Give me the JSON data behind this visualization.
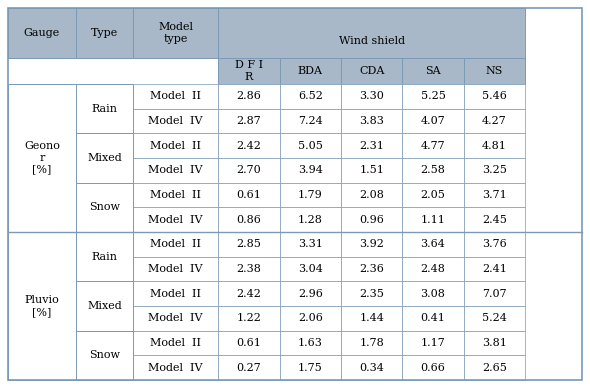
{
  "header_bg": "#a8b8c8",
  "data_bg": "#ffffff",
  "border_color": "#7a9ab5",
  "rows": [
    [
      "Geono\nr\n[%]",
      "Rain",
      "Model  II",
      "2.86",
      "6.52",
      "3.30",
      "5.25",
      "5.46"
    ],
    [
      "",
      "",
      "Model  IV",
      "2.87",
      "7.24",
      "3.83",
      "4.07",
      "4.27"
    ],
    [
      "",
      "Mixed",
      "Model  II",
      "2.42",
      "5.05",
      "2.31",
      "4.77",
      "4.81"
    ],
    [
      "",
      "",
      "Model  IV",
      "2.70",
      "3.94",
      "1.51",
      "2.58",
      "3.25"
    ],
    [
      "",
      "Snow",
      "Model  II",
      "0.61",
      "1.79",
      "2.08",
      "2.05",
      "3.71"
    ],
    [
      "",
      "",
      "Model  IV",
      "0.86",
      "1.28",
      "0.96",
      "1.11",
      "2.45"
    ],
    [
      "Pluvio\n[%]",
      "Rain",
      "Model  II",
      "2.85",
      "3.31",
      "3.92",
      "3.64",
      "3.76"
    ],
    [
      "",
      "",
      "Model  IV",
      "2.38",
      "3.04",
      "2.36",
      "2.48",
      "2.41"
    ],
    [
      "",
      "Mixed",
      "Model  II",
      "2.42",
      "2.96",
      "2.35",
      "3.08",
      "7.07"
    ],
    [
      "",
      "",
      "Model  IV",
      "1.22",
      "2.06",
      "1.44",
      "0.41",
      "5.24"
    ],
    [
      "",
      "Snow",
      "Model  II",
      "0.61",
      "1.63",
      "1.78",
      "1.17",
      "3.81"
    ],
    [
      "",
      "",
      "Model  IV",
      "0.27",
      "1.75",
      "0.34",
      "0.66",
      "2.65"
    ]
  ],
  "figsize": [
    5.9,
    3.88
  ],
  "dpi": 100,
  "font_size": 8.0,
  "font_family": "DejaVu Serif"
}
